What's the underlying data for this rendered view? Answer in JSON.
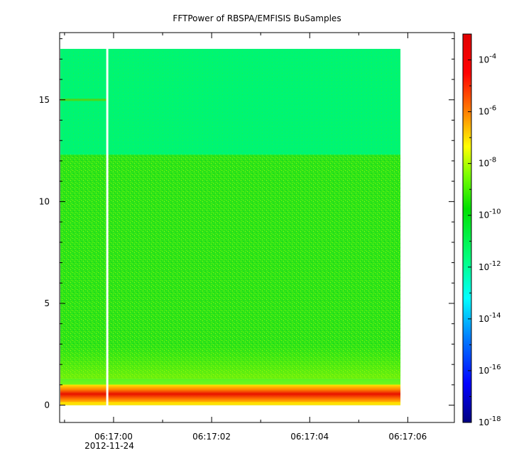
{
  "chart_data": {
    "type": "heatmap",
    "title": "FFTPower of RBSPA/EMFISIS  BuSamples",
    "xlabel": "",
    "ylabel": "",
    "x_ticks": [
      {
        "label": "06:17:00",
        "sublabel": "2012-11-24",
        "value": 0
      },
      {
        "label": "06:17:02",
        "value": 2
      },
      {
        "label": "06:17:04",
        "value": 4
      },
      {
        "label": "06:17:06",
        "value": 6
      }
    ],
    "x_minor_ticks": [
      -1,
      1,
      3,
      5
    ],
    "xlim": [
      -1.1,
      6.95
    ],
    "y_ticks": [
      0,
      5,
      10,
      15
    ],
    "ylim": [
      -0.85,
      18.3
    ],
    "data_extent": {
      "x": [
        -1.1,
        5.85
      ],
      "y": [
        0,
        17.5
      ]
    },
    "gap_x": [
      -0.15,
      -0.12
    ],
    "band_levels": [
      {
        "y_range": [
          12.3,
          17.5
        ],
        "level": "cyan-green"
      },
      {
        "y_range": [
          1.3,
          12.3
        ],
        "level": "green"
      },
      {
        "y_range": [
          0.3,
          0.8
        ],
        "level": "red"
      }
    ],
    "colorbar": {
      "scale": "log",
      "range": [
        1e-18,
        0.001
      ],
      "tick_labels": [
        {
          "base": "10",
          "exp": "-4"
        },
        {
          "base": "10",
          "exp": "-6"
        },
        {
          "base": "10",
          "exp": "-8"
        },
        {
          "base": "10",
          "exp": "-10"
        },
        {
          "base": "10",
          "exp": "-12"
        },
        {
          "base": "10",
          "exp": "-14"
        },
        {
          "base": "10",
          "exp": "-16"
        },
        {
          "base": "10",
          "exp": "-18"
        }
      ],
      "colors": [
        "#000080",
        "#0000ff",
        "#0080ff",
        "#00ffff",
        "#00ff80",
        "#00e000",
        "#80ff00",
        "#ffff00",
        "#ff8000",
        "#ff0000",
        "#e00000"
      ]
    },
    "grid": false,
    "legend": "colorbar-right"
  }
}
